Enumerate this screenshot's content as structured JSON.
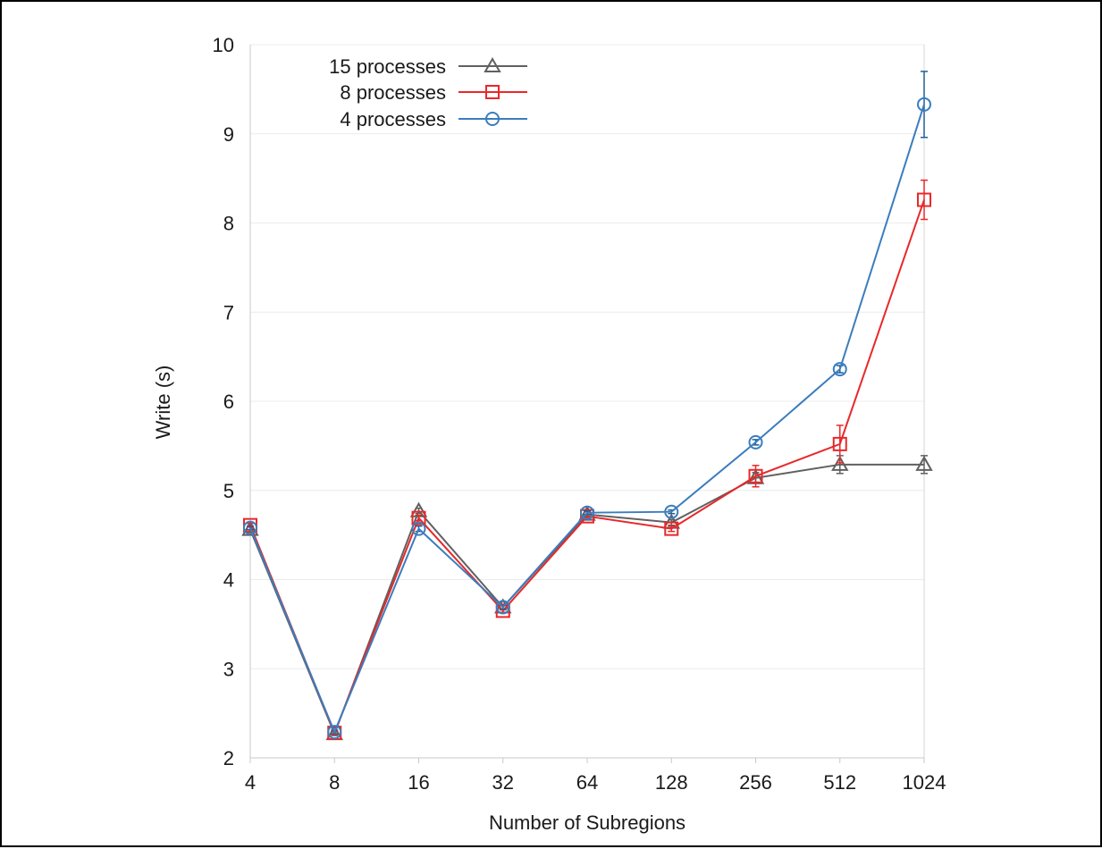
{
  "chart_data": {
    "type": "line",
    "xlabel": "Number of Subregions",
    "ylabel": "Write (s)",
    "x_categories": [
      "4",
      "8",
      "16",
      "32",
      "64",
      "128",
      "256",
      "512",
      "1024"
    ],
    "y_ticks": [
      "2",
      "3",
      "4",
      "5",
      "6",
      "7",
      "8",
      "9",
      "10"
    ],
    "ylim": [
      2,
      10
    ],
    "grid": "horizontal",
    "legend_position": "top-left",
    "series": [
      {
        "name": "15 processes",
        "color": "#606060",
        "marker": "triangle",
        "values": [
          4.56,
          2.27,
          4.77,
          3.69,
          4.73,
          4.64,
          5.14,
          5.29,
          5.29
        ],
        "errors": [
          0.03,
          0.02,
          0.03,
          0.03,
          0.03,
          0.03,
          0.06,
          0.1,
          0.1
        ]
      },
      {
        "name": "8 processes",
        "color": "#e8282a",
        "marker": "square",
        "values": [
          4.61,
          2.28,
          4.69,
          3.65,
          4.71,
          4.57,
          5.16,
          5.52,
          8.26
        ],
        "errors": [
          0.02,
          0.02,
          0.03,
          0.02,
          0.02,
          0.03,
          0.12,
          0.21,
          0.22
        ]
      },
      {
        "name": "4 processes",
        "color": "#3b7dbd",
        "marker": "circle",
        "values": [
          4.58,
          2.29,
          4.57,
          3.69,
          4.75,
          4.76,
          5.54,
          6.36,
          9.33
        ],
        "errors": [
          0.02,
          0.02,
          0.03,
          0.02,
          0.02,
          0.02,
          0.03,
          0.04,
          0.37
        ]
      }
    ]
  }
}
